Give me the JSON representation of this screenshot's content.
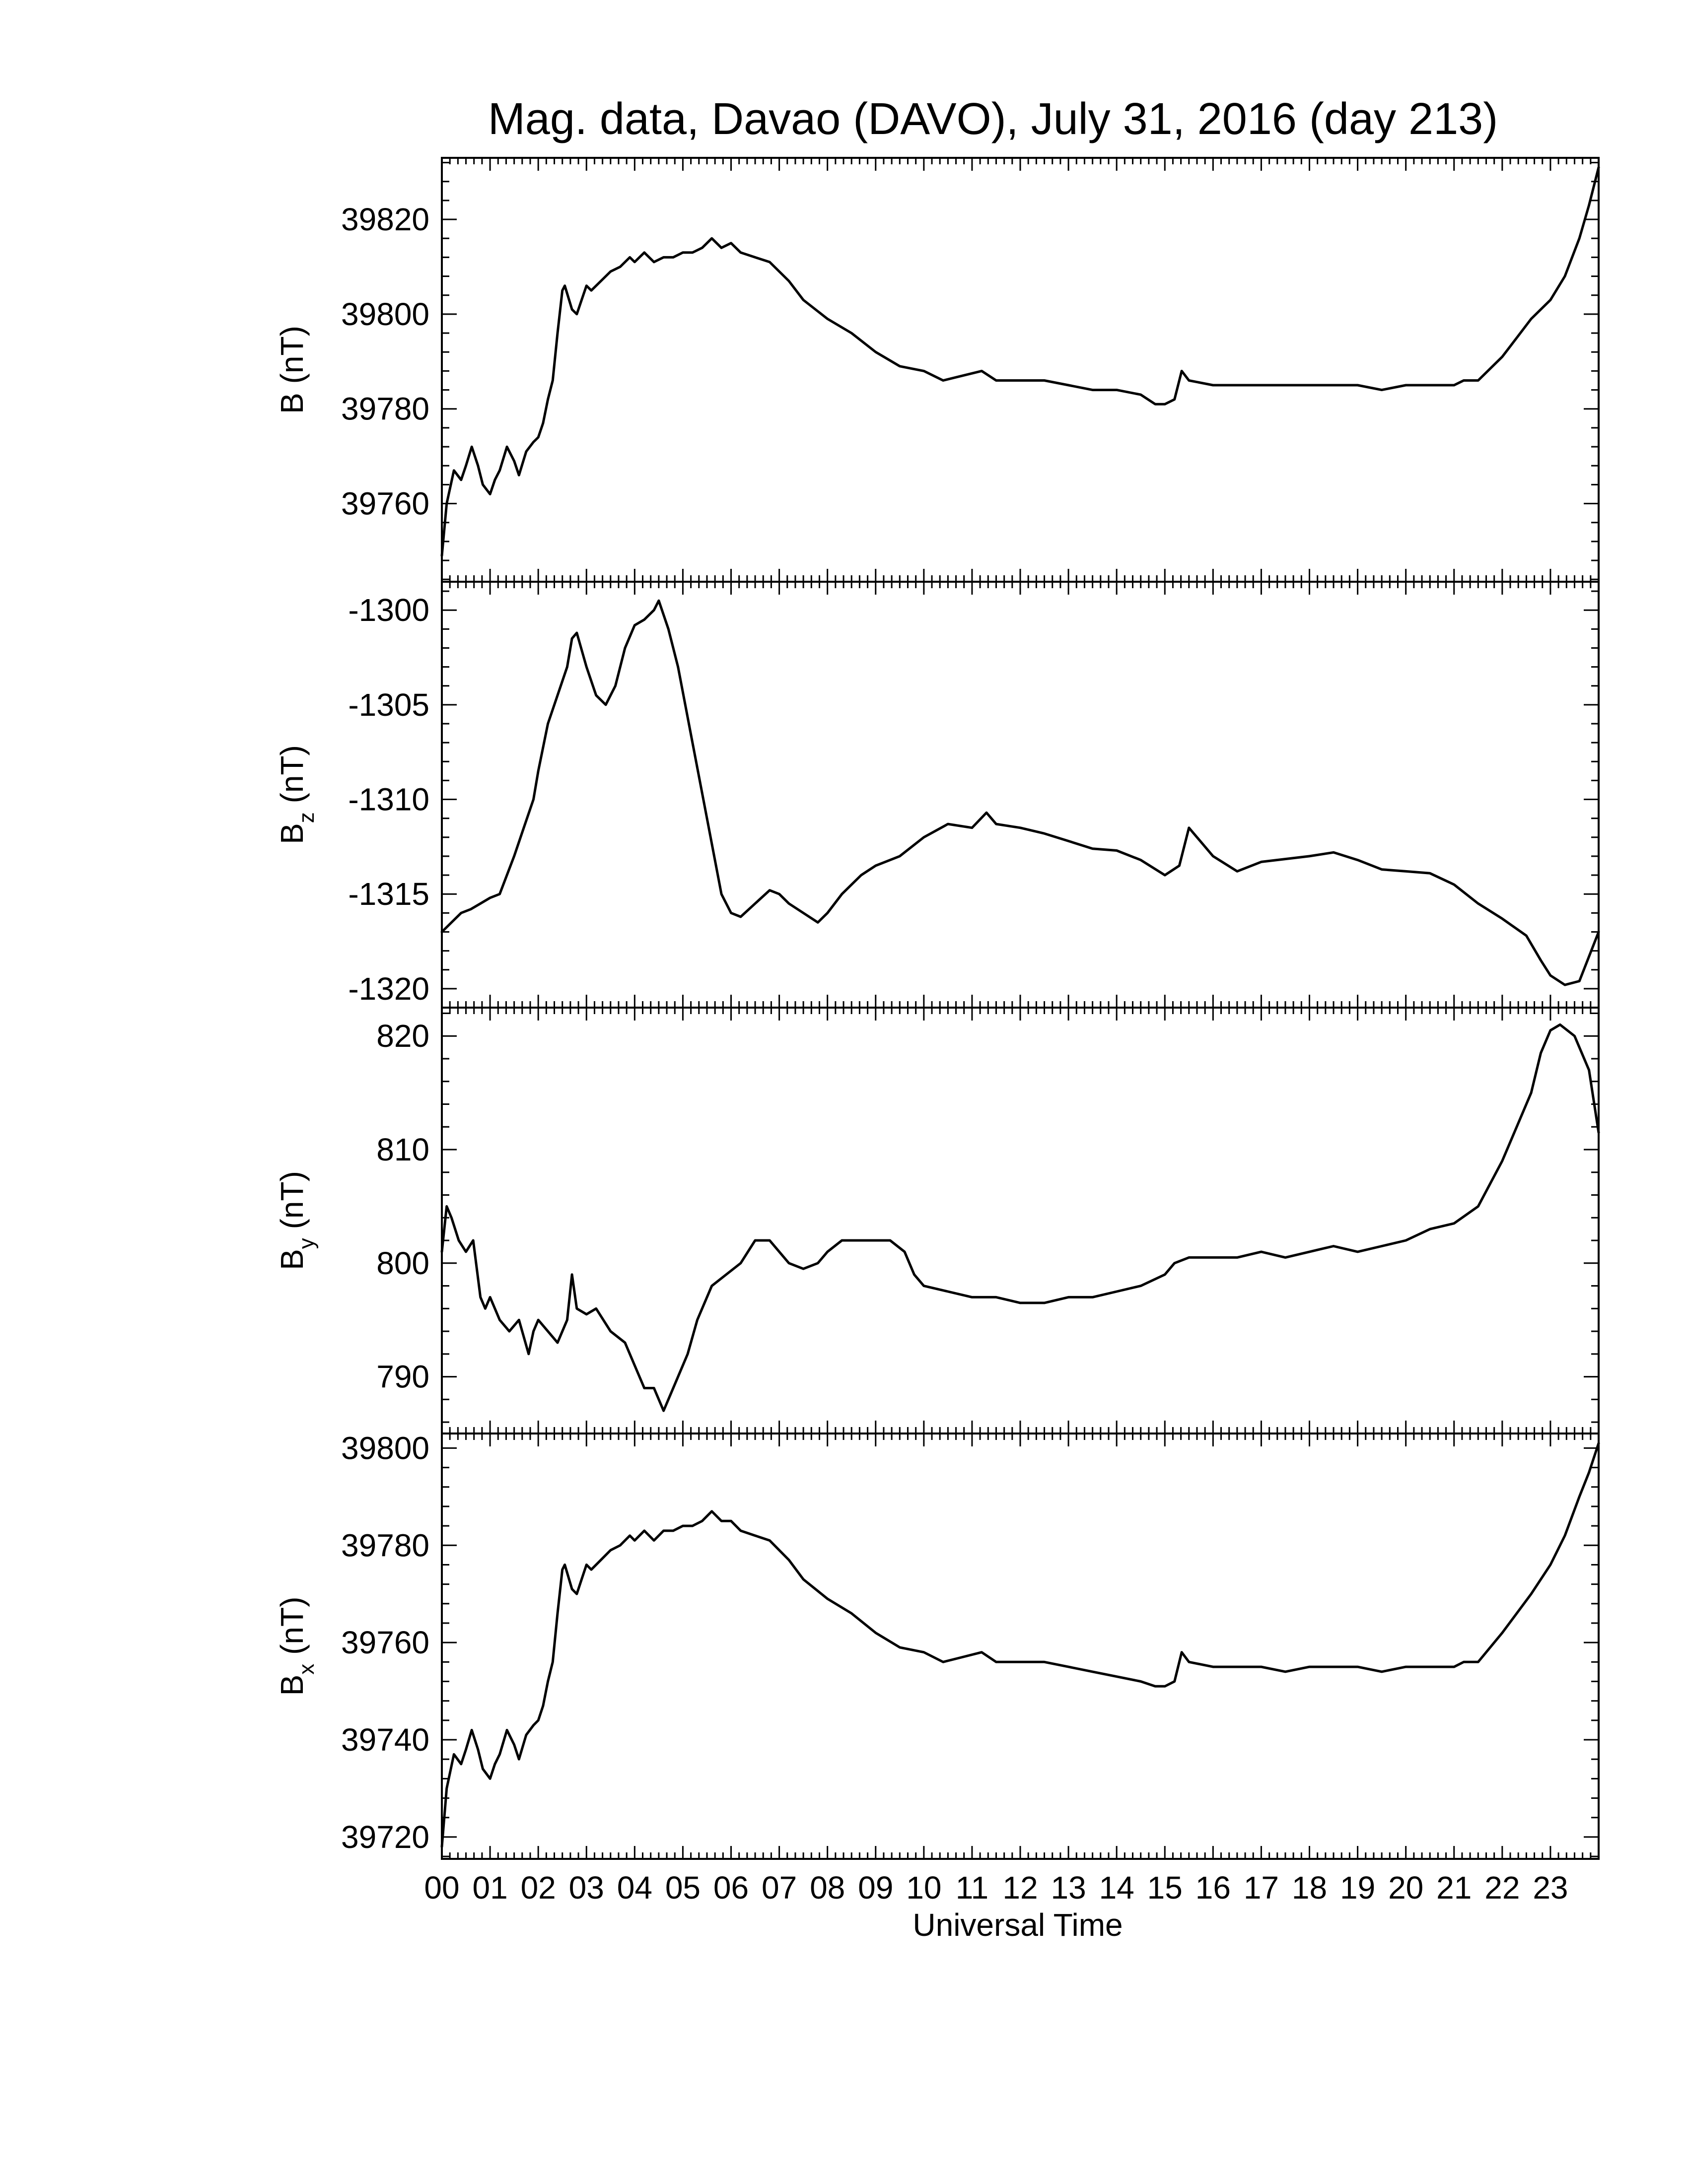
{
  "chart_data": {
    "type": "line",
    "title": "Mag. data, Davao (DAVO), July 31, 2016 (day 213)",
    "xlabel": "Universal Time",
    "x_unit": "hours",
    "xlim": [
      0,
      24
    ],
    "x_tick_labels": [
      "00",
      "01",
      "02",
      "03",
      "04",
      "05",
      "06",
      "07",
      "08",
      "09",
      "10",
      "11",
      "12",
      "13",
      "14",
      "15",
      "16",
      "17",
      "18",
      "19",
      "20",
      "21",
      "22",
      "23"
    ],
    "grid": false,
    "panels": [
      {
        "id": "B",
        "ylabel_main": "B",
        "ylabel_sub": "",
        "ylabel_unit": " (nT)",
        "ylim": [
          39743.5,
          39833
        ],
        "y_ticks": [
          "39760",
          "39780",
          "39800",
          "39820"
        ],
        "y_tick_values": [
          39760,
          39780,
          39800,
          39820
        ],
        "x": [
          0.0,
          0.1,
          0.25,
          0.4,
          0.5,
          0.62,
          0.75,
          0.85,
          1.0,
          1.1,
          1.2,
          1.35,
          1.5,
          1.6,
          1.75,
          1.9,
          2.0,
          2.1,
          2.2,
          2.3,
          2.4,
          2.5,
          2.55,
          2.7,
          2.8,
          2.9,
          3.0,
          3.1,
          3.3,
          3.5,
          3.7,
          3.9,
          4.0,
          4.2,
          4.4,
          4.6,
          4.8,
          5.0,
          5.2,
          5.4,
          5.6,
          5.8,
          6.0,
          6.2,
          6.5,
          6.8,
          7.0,
          7.2,
          7.5,
          8.0,
          8.5,
          9.0,
          9.5,
          10.0,
          10.4,
          10.8,
          11.2,
          11.5,
          12.0,
          12.5,
          13.0,
          13.5,
          14.0,
          14.5,
          14.8,
          15.0,
          15.2,
          15.35,
          15.5,
          16.0,
          16.5,
          17.0,
          17.5,
          18.0,
          18.5,
          19.0,
          19.5,
          20.0,
          20.5,
          21.0,
          21.2,
          21.5,
          22.0,
          22.3,
          22.6,
          23.0,
          23.3,
          23.6,
          23.8,
          24.0
        ],
        "y": [
          39749,
          39760,
          39767,
          39765,
          39768,
          39772,
          39768,
          39764,
          39762,
          39765,
          39767,
          39772,
          39769,
          39766,
          39771,
          39773,
          39774,
          39777,
          39782,
          39786,
          39796,
          39805,
          39806,
          39801,
          39800,
          39803,
          39806,
          39805,
          39807,
          39809,
          39810,
          39812,
          39811,
          39813,
          39811,
          39812,
          39812,
          39813,
          39813,
          39814,
          39816,
          39814,
          39815,
          39813,
          39812,
          39811,
          39809,
          39807,
          39803,
          39799,
          39796,
          39792,
          39789,
          39788,
          39786,
          39787,
          39788,
          39786,
          39786,
          39786,
          39785,
          39784,
          39784,
          39783,
          39781,
          39781,
          39782,
          39788,
          39786,
          39785,
          39785,
          39785,
          39785,
          39785,
          39785,
          39785,
          39784,
          39785,
          39785,
          39785,
          39786,
          39786,
          39791,
          39795,
          39799,
          39803,
          39808,
          39816,
          39823,
          39831
        ]
      },
      {
        "id": "Bz",
        "ylabel_main": "B",
        "ylabel_sub": "z",
        "ylabel_unit": " (nT)",
        "ylim": [
          -1321,
          -1298.5
        ],
        "y_ticks": [
          "-1300",
          "-1305",
          "-1310",
          "-1315",
          "-1320"
        ],
        "y_tick_values": [
          -1300,
          -1305,
          -1310,
          -1315,
          -1320
        ],
        "x": [
          0.0,
          0.2,
          0.4,
          0.6,
          0.8,
          1.0,
          1.2,
          1.5,
          1.7,
          1.9,
          2.0,
          2.2,
          2.4,
          2.6,
          2.7,
          2.8,
          3.0,
          3.2,
          3.4,
          3.6,
          3.8,
          4.0,
          4.2,
          4.4,
          4.5,
          4.7,
          4.9,
          5.2,
          5.5,
          5.8,
          6.0,
          6.2,
          6.5,
          6.8,
          7.0,
          7.2,
          7.5,
          7.8,
          8.0,
          8.3,
          8.7,
          9.0,
          9.5,
          10.0,
          10.5,
          11.0,
          11.3,
          11.5,
          12.0,
          12.5,
          13.0,
          13.5,
          14.0,
          14.5,
          15.0,
          15.3,
          15.5,
          16.0,
          16.5,
          17.0,
          18.0,
          18.5,
          19.0,
          19.5,
          20.0,
          20.5,
          21.0,
          21.5,
          22.0,
          22.5,
          22.8,
          23.0,
          23.3,
          23.6,
          24.0
        ],
        "y": [
          -1317,
          -1316.5,
          -1316,
          -1315.8,
          -1315.5,
          -1315.2,
          -1315,
          -1313,
          -1311.5,
          -1310,
          -1308.5,
          -1306,
          -1304.5,
          -1303,
          -1301.5,
          -1301.2,
          -1303,
          -1304.5,
          -1305,
          -1304,
          -1302,
          -1300.8,
          -1300.5,
          -1300,
          -1299.5,
          -1301,
          -1303,
          -1307,
          -1311,
          -1315,
          -1316,
          -1316.2,
          -1315.5,
          -1314.8,
          -1315,
          -1315.5,
          -1316,
          -1316.5,
          -1316,
          -1315,
          -1314,
          -1313.5,
          -1313,
          -1312,
          -1311.3,
          -1311.5,
          -1310.7,
          -1311.3,
          -1311.5,
          -1311.8,
          -1312.2,
          -1312.6,
          -1312.7,
          -1313.2,
          -1314,
          -1313.5,
          -1311.5,
          -1313,
          -1313.8,
          -1313.3,
          -1313,
          -1312.8,
          -1313.2,
          -1313.7,
          -1313.8,
          -1313.9,
          -1314.5,
          -1315.5,
          -1316.3,
          -1317.2,
          -1318.5,
          -1319.3,
          -1319.8,
          -1319.6,
          -1317
        ]
      },
      {
        "id": "By",
        "ylabel_main": "B",
        "ylabel_sub": "y",
        "ylabel_unit": " (nT)",
        "ylim": [
          785,
          822.5
        ],
        "y_ticks": [
          "790",
          "800",
          "810",
          "820"
        ],
        "y_tick_values": [
          790,
          800,
          810,
          820
        ],
        "x": [
          0.0,
          0.1,
          0.2,
          0.35,
          0.5,
          0.65,
          0.8,
          0.9,
          1.0,
          1.2,
          1.4,
          1.6,
          1.8,
          1.9,
          2.0,
          2.2,
          2.4,
          2.6,
          2.7,
          2.8,
          3.0,
          3.2,
          3.5,
          3.8,
          4.0,
          4.2,
          4.4,
          4.6,
          4.7,
          4.9,
          5.1,
          5.3,
          5.6,
          5.9,
          6.2,
          6.5,
          6.8,
          7.0,
          7.2,
          7.5,
          7.8,
          8.0,
          8.3,
          8.6,
          9.0,
          9.3,
          9.6,
          9.8,
          10.0,
          10.5,
          11.0,
          11.5,
          12.0,
          12.5,
          13.0,
          13.5,
          14.0,
          14.5,
          15.0,
          15.2,
          15.5,
          16.0,
          16.5,
          17.0,
          17.5,
          18.0,
          18.5,
          19.0,
          19.5,
          20.0,
          20.5,
          21.0,
          21.5,
          22.0,
          22.3,
          22.6,
          22.8,
          23.0,
          23.2,
          23.5,
          23.8,
          24.0
        ],
        "y": [
          801,
          805,
          804,
          802,
          801,
          802,
          797,
          796,
          797,
          795,
          794,
          795,
          792,
          794,
          795,
          794,
          793,
          795,
          799,
          796,
          795.5,
          796,
          794,
          793,
          791,
          789,
          789,
          787,
          788,
          790,
          792,
          795,
          798,
          799,
          800,
          802,
          802,
          801,
          800,
          799.5,
          800,
          801,
          802,
          802,
          802,
          802,
          801,
          799,
          798,
          797.5,
          797,
          797,
          796.5,
          796.5,
          797,
          797,
          797.5,
          798,
          799,
          800,
          800.5,
          800.5,
          800.5,
          801,
          800.5,
          801,
          801.5,
          801,
          801.5,
          802,
          803,
          803.5,
          805,
          809,
          812,
          815,
          818.5,
          820.5,
          821,
          820,
          817,
          811.5
        ]
      },
      {
        "id": "Bx",
        "ylabel_main": "B",
        "ylabel_sub": "x",
        "ylabel_unit": " (nT)",
        "ylim": [
          39715.5,
          39803
        ],
        "y_ticks": [
          "39720",
          "39740",
          "39760",
          "39780",
          "39800"
        ],
        "y_tick_values": [
          39720,
          39740,
          39760,
          39780,
          39800
        ],
        "x": [
          0.0,
          0.1,
          0.25,
          0.4,
          0.5,
          0.62,
          0.75,
          0.85,
          1.0,
          1.1,
          1.2,
          1.35,
          1.5,
          1.6,
          1.75,
          1.9,
          2.0,
          2.1,
          2.2,
          2.3,
          2.4,
          2.5,
          2.55,
          2.7,
          2.8,
          2.9,
          3.0,
          3.1,
          3.3,
          3.5,
          3.7,
          3.9,
          4.0,
          4.2,
          4.4,
          4.6,
          4.8,
          5.0,
          5.2,
          5.4,
          5.6,
          5.8,
          6.0,
          6.2,
          6.5,
          6.8,
          7.0,
          7.2,
          7.5,
          8.0,
          8.5,
          9.0,
          9.5,
          10.0,
          10.4,
          10.8,
          11.2,
          11.5,
          12.0,
          12.5,
          13.0,
          13.5,
          14.0,
          14.5,
          14.8,
          15.0,
          15.2,
          15.35,
          15.5,
          16.0,
          16.5,
          17.0,
          17.5,
          18.0,
          18.5,
          19.0,
          19.5,
          20.0,
          20.5,
          21.0,
          21.2,
          21.5,
          22.0,
          22.3,
          22.6,
          23.0,
          23.3,
          23.6,
          23.8,
          24.0
        ],
        "y": [
          39718,
          39730,
          39737,
          39735,
          39738,
          39742,
          39738,
          39734,
          39732,
          39735,
          39737,
          39742,
          39739,
          39736,
          39741,
          39743,
          39744,
          39747,
          39752,
          39756,
          39766,
          39775,
          39776,
          39771,
          39770,
          39773,
          39776,
          39775,
          39777,
          39779,
          39780,
          39782,
          39781,
          39783,
          39781,
          39783,
          39783,
          39784,
          39784,
          39785,
          39787,
          39785,
          39785,
          39783,
          39782,
          39781,
          39779,
          39777,
          39773,
          39769,
          39766,
          39762,
          39759,
          39758,
          39756,
          39757,
          39758,
          39756,
          39756,
          39756,
          39755,
          39754,
          39753,
          39752,
          39751,
          39751,
          39752,
          39758,
          39756,
          39755,
          39755,
          39755,
          39754,
          39755,
          39755,
          39755,
          39754,
          39755,
          39755,
          39755,
          39756,
          39756,
          39762,
          39766,
          39770,
          39776,
          39782,
          39790,
          39795,
          39801
        ]
      }
    ]
  }
}
